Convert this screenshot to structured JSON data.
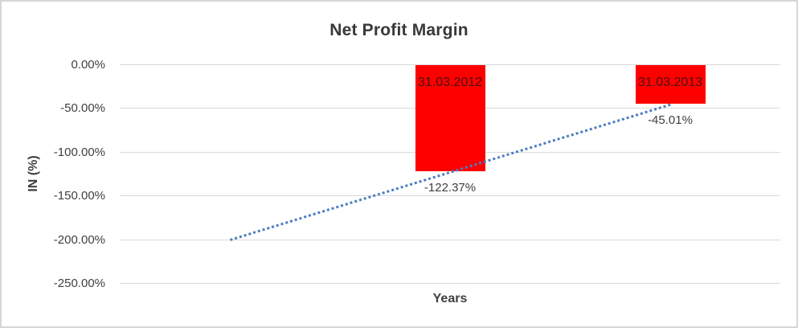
{
  "chart_data": {
    "type": "bar",
    "title": "Net Profit Margin",
    "xlabel": "Years",
    "ylabel": "IN (%)",
    "categories": [
      "",
      "31.03.2012",
      "31.03.2013"
    ],
    "values": [
      null,
      -122.37,
      -45.01
    ],
    "value_labels": [
      null,
      "-122.37%",
      "-45.01%"
    ],
    "yticks": {
      "values": [
        0,
        -50,
        -100,
        -150,
        -200,
        -250
      ],
      "labels": [
        "0.00%",
        "-50.00%",
        "-100.00%",
        "-150.00%",
        "-200.00%",
        "-250.00%"
      ]
    },
    "ylim": [
      -250,
      0
    ],
    "grid": true,
    "legend": false,
    "colors": {
      "bar": "#ff0000",
      "bar_category_label": "#471111",
      "value_label": "#404040",
      "trendline": "#4a7ebd",
      "gridline": "#d9d9d9"
    },
    "trendline": {
      "type": "linear",
      "line_style": "dotted",
      "start": {
        "category_index": 0,
        "value": -199.73
      },
      "end": {
        "category_index": 2,
        "value": -45.01
      }
    }
  }
}
